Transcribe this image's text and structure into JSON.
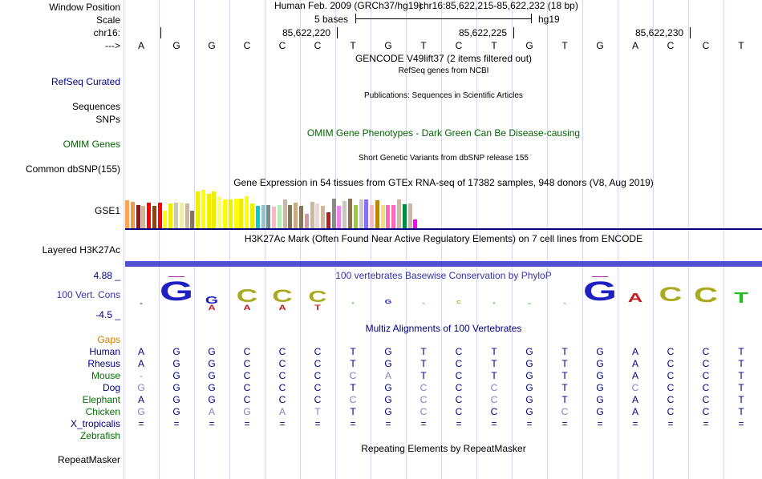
{
  "labels": {
    "window_position": "Window Position",
    "scale": "Scale",
    "chr": "chr16:",
    "arrow": "--->",
    "refseq": "RefSeq Curated",
    "sequences": "Sequences",
    "snps": "SNPs",
    "omim": "OMIM Genes",
    "dbsnp": "Common dbSNP(155)",
    "gse1": "GSE1",
    "h3k27ac": "Layered H3K27Ac",
    "cons_max": "4.88 _",
    "cons_name": "100 Vert. Cons",
    "cons_min": "-4.5 _",
    "gaps": "Gaps",
    "repeatmasker": "RepeatMasker"
  },
  "header": {
    "assembly": "Human Feb. 2009 (GRCh37/hg19)",
    "position": "chr16:85,622,215-85,622,232 (18 bp)",
    "scale_text": "5 bases",
    "scale_db": "hg19",
    "ticks": [
      "85,622,220",
      "85,622,225",
      "85,622,230"
    ]
  },
  "bases": [
    "A",
    "G",
    "G",
    "C",
    "C",
    "C",
    "T",
    "G",
    "T",
    "C",
    "T",
    "G",
    "T",
    "G",
    "A",
    "C",
    "C",
    "T"
  ],
  "tracks": {
    "gencode": "GENCODE V49lift37 (2 items filtered out)",
    "refseq": "RefSeq genes from NCBI",
    "publications": "Publications: Sequences in Scientific Articles",
    "omim_title": "OMIM Gene Phenotypes - Dark Green Can Be Disease-causing",
    "dbsnp_title": "Short Genetic Variants from dbSNP release 155",
    "gtex_title": "Gene Expression in 54 tissues from GTEx RNA-seq of 17382 samples, 948 donors (V8, Aug 2019)",
    "h3k27ac_title": "H3K27Ac Mark (Often Found Near Active Regulatory Elements) on 7 cell lines from ENCODE",
    "phylop_title": "100 vertebrates Basewise Conservation by PhyloP",
    "multiz_title": "Multiz Alignments of 100 Vertebrates",
    "repeat_title": "Repeating Elements by RepeatMasker"
  },
  "gtex": {
    "values": [
      45,
      43,
      37,
      36,
      41,
      36,
      41,
      28,
      40,
      41,
      41,
      40,
      28,
      60,
      62,
      56,
      60,
      52,
      46,
      46,
      48,
      48,
      52,
      40,
      36,
      37,
      37,
      35,
      38,
      46,
      38,
      41,
      36,
      23,
      42,
      40,
      36,
      26,
      48,
      36,
      44,
      48,
      37,
      47,
      47,
      38,
      45,
      37,
      38,
      38,
      47,
      39,
      40,
      14
    ],
    "colors": [
      "#ffa54f",
      "#ee9a49",
      "#8b1a1a",
      "#cdb79e",
      "#ff0000",
      "#8b4513",
      "#ff0000",
      "#ffff00",
      "#eeee00",
      "#cdc9a5",
      "#eeeeaa",
      "#cdb79e",
      "#8b7355",
      "#eeee00",
      "#ffff00",
      "#eeee00",
      "#eeee00",
      "#ffff66",
      "#ffff00",
      "#eeee00",
      "#ffff00",
      "#eeee00",
      "#ffff00",
      "#eeee00",
      "#00cdcd",
      "#9ac0cd",
      "#7a8b8b",
      "#ffb6c1",
      "#b4eeb4",
      "#cdb79e",
      "#8b7355",
      "#cdaa7d",
      "#8b7355",
      "#cd9b9b",
      "#cdb79e",
      "#eed5d2",
      "#cdb79e",
      "#b22222",
      "#8b8989",
      "#ee82ee",
      "#cdc5bf",
      "#8b7355",
      "#9acd32",
      "#cdc9c9",
      "#8470ff",
      "#ffb6c1",
      "#b8860b",
      "#eedd82",
      "#ff69b4",
      "#ff69b4",
      "#cdb79e",
      "#008b45",
      "#cdb79e",
      "#ff00ff"
    ]
  },
  "phylop": {
    "heights": [
      0.05,
      0.95,
      0.35,
      0.65,
      0.6,
      0.55,
      0.1,
      0.2,
      0.02,
      0.15,
      0.1,
      0.05,
      0.05,
      0.95,
      0.45,
      0.7,
      0.72,
      0.5
    ],
    "colors": [
      "#2020c0",
      "#2020c0",
      "#2020c0",
      "#aaaa20",
      "#aaaa20",
      "#aaaa20",
      "#20c020",
      "#2020c0",
      "#20c020",
      "#aaaa20",
      "#20c020",
      "#20c020",
      "#20c020",
      "#2020c0",
      "#c02020",
      "#aaaa20",
      "#aaaa20",
      "#20c020"
    ],
    "secondary": [
      "",
      "",
      "A",
      "A",
      "A",
      "T",
      "",
      "",
      "",
      "",
      "",
      "",
      "",
      "",
      "",
      "",
      "",
      ""
    ]
  },
  "species": [
    {
      "name": "Human",
      "seq": [
        "A",
        "G",
        "G",
        "C",
        "C",
        "C",
        "T",
        "G",
        "T",
        "C",
        "T",
        "G",
        "T",
        "G",
        "A",
        "C",
        "C",
        "T"
      ],
      "dim": []
    },
    {
      "name": "Rhesus",
      "seq": [
        "A",
        "G",
        "G",
        "C",
        "C",
        "C",
        "T",
        "G",
        "T",
        "C",
        "T",
        "G",
        "T",
        "G",
        "A",
        "C",
        "C",
        "T"
      ],
      "dim": []
    },
    {
      "name": "Mouse",
      "seq": [
        "-",
        "G",
        "G",
        "C",
        "C",
        "C",
        "C",
        "A",
        "T",
        "C",
        "T",
        "G",
        "T",
        "G",
        "A",
        "C",
        "C",
        "T"
      ],
      "dim": [
        0,
        6,
        7
      ]
    },
    {
      "name": "Dog",
      "seq": [
        "G",
        "G",
        "G",
        "C",
        "C",
        "C",
        "T",
        "G",
        "C",
        "C",
        "C",
        "G",
        "T",
        "G",
        "C",
        "C",
        "C",
        "T"
      ],
      "dim": [
        0,
        8,
        10,
        14
      ]
    },
    {
      "name": "Elephant",
      "seq": [
        "A",
        "G",
        "G",
        "C",
        "C",
        "C",
        "C",
        "G",
        "C",
        "C",
        "C",
        "G",
        "T",
        "G",
        "A",
        "C",
        "C",
        "T"
      ],
      "dim": [
        6,
        8,
        10
      ]
    },
    {
      "name": "Chicken",
      "seq": [
        "G",
        "G",
        "A",
        "G",
        "A",
        "T",
        "T",
        "G",
        "C",
        "C",
        "C",
        "G",
        "C",
        "G",
        "A",
        "C",
        "C",
        "T"
      ],
      "dim": [
        0,
        2,
        3,
        4,
        5,
        8,
        12
      ]
    },
    {
      "name": "X_tropicalis",
      "seq": [
        "=",
        "=",
        "=",
        "=",
        "=",
        "=",
        "=",
        "=",
        "=",
        "=",
        "=",
        "=",
        "=",
        "=",
        "=",
        "=",
        "=",
        "="
      ],
      "dim": []
    },
    {
      "name": "Zebrafish",
      "seq": [],
      "dim": []
    }
  ],
  "colors": {
    "navy": "#000080",
    "omim_green": "#006400",
    "gaps_orange": "#d08000",
    "multiz_green": "#007000",
    "phylop_blue": "#3333aa",
    "h3k27ac": "#5050d0",
    "dim_base": "#8080c0",
    "gridline": "#d7d7f2"
  }
}
